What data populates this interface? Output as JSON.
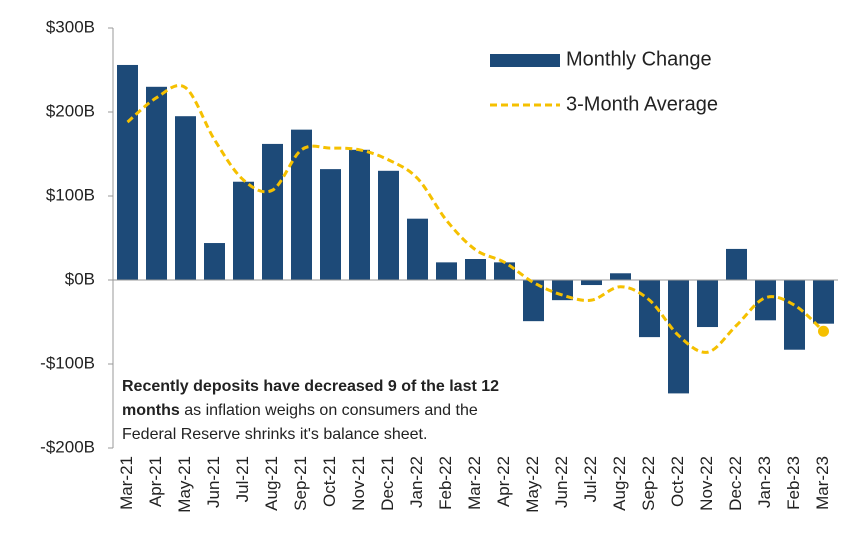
{
  "chart_data": {
    "type": "bar",
    "categories": [
      "Mar-21",
      "Apr-21",
      "May-21",
      "Jun-21",
      "Jul-21",
      "Aug-21",
      "Sep-21",
      "Oct-21",
      "Nov-21",
      "Dec-21",
      "Jan-22",
      "Feb-22",
      "Mar-22",
      "Apr-22",
      "May-22",
      "Jun-22",
      "Jul-22",
      "Aug-22",
      "Sep-22",
      "Oct-22",
      "Nov-22",
      "Dec-22",
      "Jan-23",
      "Feb-23",
      "Mar-23"
    ],
    "series": [
      {
        "name": "Monthly Change",
        "type": "bar",
        "color": "#1d4a78",
        "values": [
          256,
          230,
          195,
          44,
          117,
          162,
          179,
          132,
          155,
          130,
          73,
          21,
          25,
          21,
          -49,
          -24,
          -6,
          8,
          -68,
          -135,
          -56,
          37,
          -48,
          -83,
          -52
        ]
      },
      {
        "name": "3-Month Average",
        "type": "line",
        "color": "#f5c000",
        "dashed": true,
        "end_marker": true,
        "values": [
          188,
          217,
          229,
          167,
          119,
          107,
          155,
          157,
          155,
          143,
          121,
          71,
          36,
          21,
          -3,
          -18,
          -24,
          -8,
          -24,
          -66,
          -86,
          -54,
          -21,
          -30,
          -61
        ]
      }
    ],
    "ylim": [
      -200,
      300
    ],
    "yticks": [
      {
        "value": -200,
        "label": "-$200B"
      },
      {
        "value": -100,
        "label": "-$100B"
      },
      {
        "value": 0,
        "label": "$0B"
      },
      {
        "value": 100,
        "label": "$100B"
      },
      {
        "value": 200,
        "label": "$200B"
      },
      {
        "value": 300,
        "label": "$300B"
      }
    ],
    "legend": "top-right",
    "annotation_lines": [
      {
        "bold": "Recently deposits have decreased 9 of the last 12"
      },
      {
        "bold": "months",
        "text": " as inflation weighs on consumers and the"
      },
      {
        "text": "Federal Reserve shrinks it's balance sheet."
      }
    ]
  }
}
